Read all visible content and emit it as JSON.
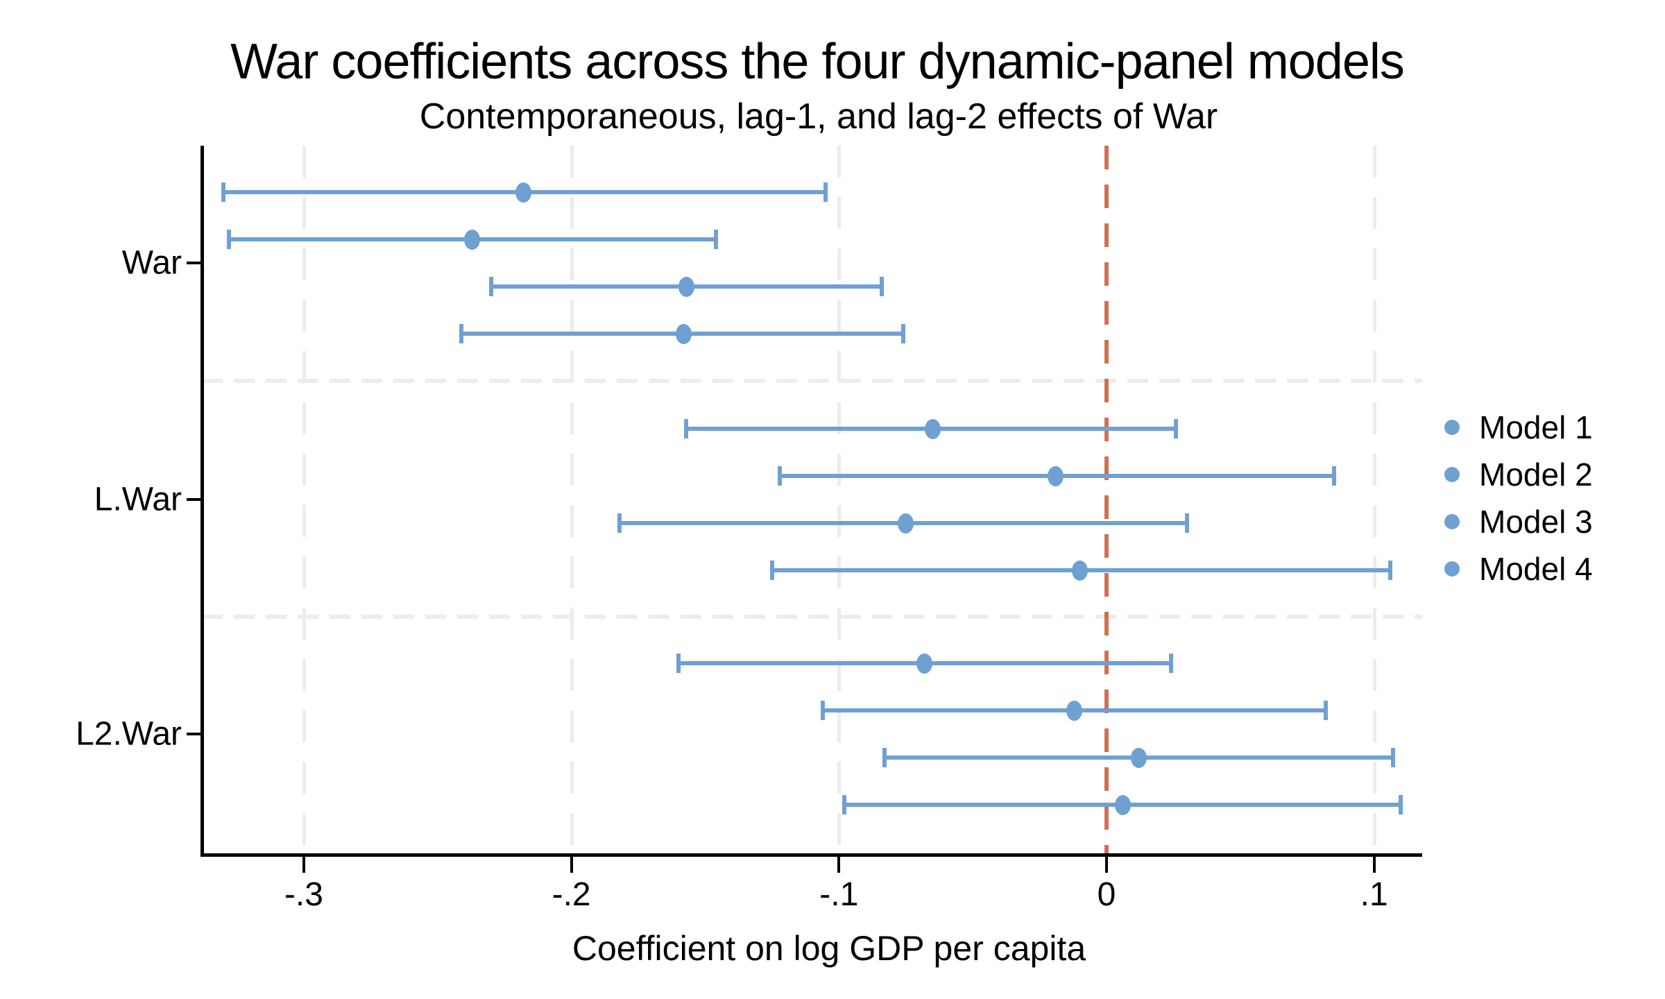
{
  "chart_data": {
    "type": "scatter",
    "variant": "coefficient-dot-whisker-plot",
    "title": "War coefficients across the four dynamic-panel models",
    "subtitle": "Contemporaneous, lag-1, and lag-2 effects of War",
    "xlabel": "Coefficient on log GDP per capita",
    "xlim": [
      -0.338,
      0.118
    ],
    "x_ticks": [
      {
        "value": -0.3,
        "label": "-.3"
      },
      {
        "value": -0.2,
        "label": "-.2"
      },
      {
        "value": -0.1,
        "label": "-.1"
      },
      {
        "value": 0,
        "label": "0"
      },
      {
        "value": 0.1,
        "label": ".1"
      }
    ],
    "zero_line": {
      "value": 0,
      "style": "dashed",
      "color": "#D2704E"
    },
    "grid": {
      "x_gridlines": true,
      "group_separators": true,
      "style": "dashed",
      "color": "#ECECEC"
    },
    "legend": {
      "position": "right",
      "entries": [
        "Model 1",
        "Model 2",
        "Model 3",
        "Model 4"
      ]
    },
    "marker_color": "#6FA0D2",
    "groups": [
      {
        "label": "War",
        "rows": [
          {
            "model": "Model 1",
            "estimate": -0.218,
            "ci_low": -0.33,
            "ci_high": -0.105
          },
          {
            "model": "Model 2",
            "estimate": -0.237,
            "ci_low": -0.328,
            "ci_high": -0.146
          },
          {
            "model": "Model 3",
            "estimate": -0.157,
            "ci_low": -0.23,
            "ci_high": -0.084
          },
          {
            "model": "Model 4",
            "estimate": -0.158,
            "ci_low": -0.241,
            "ci_high": -0.076
          }
        ]
      },
      {
        "label": "L.War",
        "rows": [
          {
            "model": "Model 1",
            "estimate": -0.065,
            "ci_low": -0.157,
            "ci_high": 0.026
          },
          {
            "model": "Model 2",
            "estimate": -0.019,
            "ci_low": -0.122,
            "ci_high": 0.085
          },
          {
            "model": "Model 3",
            "estimate": -0.075,
            "ci_low": -0.182,
            "ci_high": 0.03
          },
          {
            "model": "Model 4",
            "estimate": -0.01,
            "ci_low": -0.125,
            "ci_high": 0.106
          }
        ]
      },
      {
        "label": "L2.War",
        "rows": [
          {
            "model": "Model 1",
            "estimate": -0.068,
            "ci_low": -0.16,
            "ci_high": 0.024
          },
          {
            "model": "Model 2",
            "estimate": -0.012,
            "ci_low": -0.106,
            "ci_high": 0.082
          },
          {
            "model": "Model 3",
            "estimate": 0.012,
            "ci_low": -0.083,
            "ci_high": 0.107
          },
          {
            "model": "Model 4",
            "estimate": 0.006,
            "ci_low": -0.098,
            "ci_high": 0.11
          }
        ]
      }
    ]
  }
}
